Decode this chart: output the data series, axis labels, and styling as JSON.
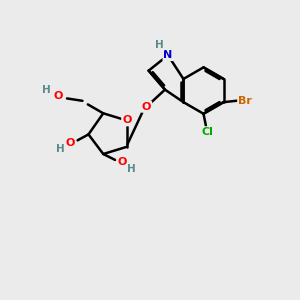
{
  "bg_color": "#ebebeb",
  "bond_color": "#000000",
  "bond_width": 1.8,
  "atom_colors": {
    "N": "#0000cc",
    "O": "#ff0000",
    "Br": "#cc6600",
    "Cl": "#00aa00",
    "C": "#000000",
    "H": "#5a8a8a"
  },
  "font_size": 8.0
}
